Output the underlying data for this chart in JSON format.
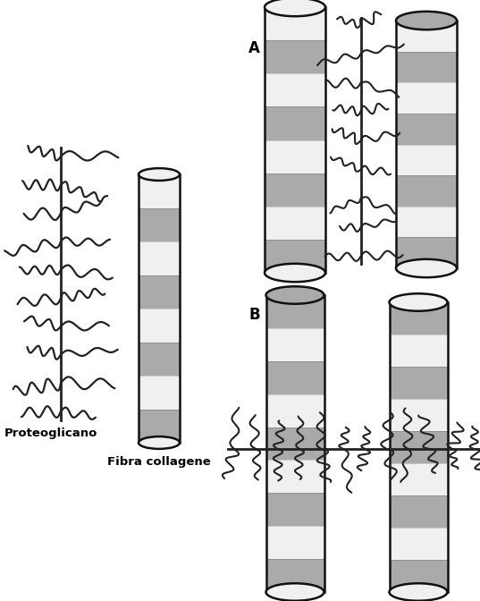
{
  "bg_color": "#ffffff",
  "stripe_dark": "#aaaaaa",
  "stripe_light": "#f0f0f0",
  "outline_color": "#111111",
  "pg_color": "#222222",
  "label_proteoglicano": "Proteoglicano",
  "label_fibra": "Fibra collagene",
  "label_A": "A",
  "label_B": "B",
  "figure_width": 5.37,
  "figure_height": 6.72,
  "dpi": 100
}
